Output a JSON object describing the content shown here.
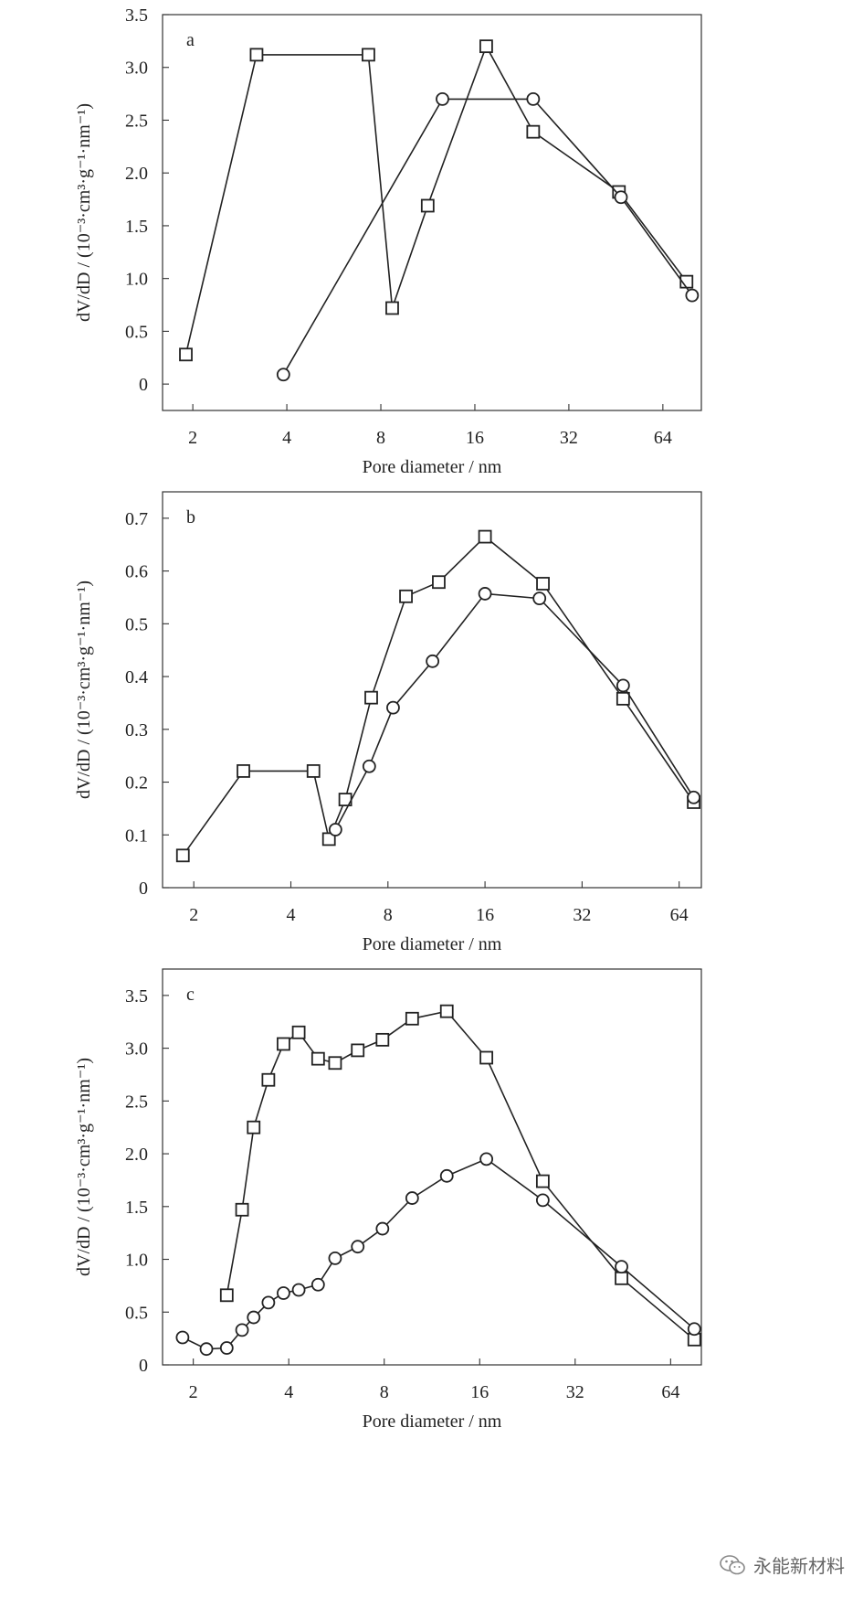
{
  "chart_data": [
    {
      "type": "line",
      "panel": "a",
      "xlabel": "Pore diameter / nm",
      "ylabel": "dV/dD / (10⁻³·cm³·g⁻¹·nm⁻¹)",
      "xscale": "log2",
      "xlim": [
        1.6,
        85
      ],
      "ylim": [
        -0.25,
        3.5
      ],
      "xticks": [
        2,
        4,
        8,
        16,
        32,
        64
      ],
      "yticks": [
        0,
        0.5,
        1.0,
        1.5,
        2.0,
        2.5,
        3.0,
        3.5
      ],
      "ytick_labels": [
        "0",
        "0.5",
        "1.0",
        "1.5",
        "2.0",
        "2.5",
        "3.0",
        "3.5"
      ],
      "grid": false,
      "series": [
        {
          "marker": "square",
          "x": [
            1.9,
            3.2,
            7.3,
            8.7,
            11.3,
            17.4,
            24.6,
            46.3,
            76.2
          ],
          "y": [
            0.28,
            3.12,
            3.12,
            0.72,
            1.69,
            3.2,
            2.39,
            1.82,
            0.97
          ]
        },
        {
          "marker": "circle",
          "x": [
            3.9,
            12.6,
            24.6,
            47.0,
            79.4
          ],
          "y": [
            0.09,
            2.7,
            2.7,
            1.77,
            0.84
          ]
        }
      ]
    },
    {
      "type": "line",
      "panel": "b",
      "xlabel": "Pore diameter / nm",
      "ylabel": "dV/dD / (10⁻³·cm³·g⁻¹·nm⁻¹)",
      "xscale": "log2",
      "xlim": [
        1.6,
        75
      ],
      "ylim": [
        0,
        0.75
      ],
      "xticks": [
        2,
        4,
        8,
        16,
        32,
        64
      ],
      "yticks": [
        0,
        0.1,
        0.2,
        0.3,
        0.4,
        0.5,
        0.6,
        0.7
      ],
      "ytick_labels": [
        "0",
        "0.1",
        "0.2",
        "0.3",
        "0.4",
        "0.5",
        "0.6",
        "0.7"
      ],
      "grid": false,
      "series": [
        {
          "marker": "square",
          "x": [
            1.85,
            2.85,
            4.7,
            5.25,
            5.9,
            7.1,
            9.1,
            11.5,
            16.0,
            24.2,
            42.9,
            71.0
          ],
          "y": [
            0.061,
            0.221,
            0.221,
            0.092,
            0.167,
            0.36,
            0.552,
            0.579,
            0.665,
            0.576,
            0.358,
            0.162
          ]
        },
        {
          "marker": "circle",
          "x": [
            5.5,
            7.0,
            8.3,
            11.0,
            16.0,
            23.6,
            42.9,
            71.0
          ],
          "y": [
            0.11,
            0.23,
            0.341,
            0.429,
            0.557,
            0.548,
            0.383,
            0.171
          ]
        }
      ]
    },
    {
      "type": "line",
      "panel": "c",
      "xlabel": "Pore diameter / nm",
      "ylabel": "dV/dD / (10⁻³·cm³·g⁻¹·nm⁻¹)",
      "xscale": "log2",
      "xlim": [
        1.6,
        80
      ],
      "ylim": [
        0,
        3.75
      ],
      "xticks": [
        2,
        4,
        8,
        16,
        32,
        64
      ],
      "yticks": [
        0,
        0.5,
        1.0,
        1.5,
        2.0,
        2.5,
        3.0,
        3.5
      ],
      "ytick_labels": [
        "0",
        "0.5",
        "1.0",
        "1.5",
        "2.0",
        "2.5",
        "3.0",
        "3.5"
      ],
      "grid": false,
      "series": [
        {
          "marker": "square",
          "x": [
            2.55,
            2.85,
            3.1,
            3.45,
            3.85,
            4.3,
            4.95,
            5.6,
            6.6,
            7.9,
            9.8,
            12.6,
            16.8,
            25.3,
            44.8,
            76.0
          ],
          "y": [
            0.66,
            1.47,
            2.25,
            2.7,
            3.04,
            3.15,
            2.9,
            2.86,
            2.98,
            3.08,
            3.28,
            3.35,
            2.91,
            1.74,
            0.82,
            0.24
          ]
        },
        {
          "marker": "circle",
          "x": [
            1.85,
            2.2,
            2.55,
            2.85,
            3.1,
            3.45,
            3.85,
            4.3,
            4.95,
            5.6,
            6.6,
            7.9,
            9.8,
            12.6,
            16.8,
            25.3,
            44.8,
            76.0
          ],
          "y": [
            0.26,
            0.15,
            0.16,
            0.33,
            0.45,
            0.59,
            0.68,
            0.71,
            0.76,
            1.01,
            1.12,
            1.29,
            1.58,
            1.79,
            1.95,
            1.56,
            0.93,
            0.34
          ]
        }
      ]
    }
  ],
  "watermark": {
    "text": "永能新材料",
    "icon": "wechat-icon"
  }
}
